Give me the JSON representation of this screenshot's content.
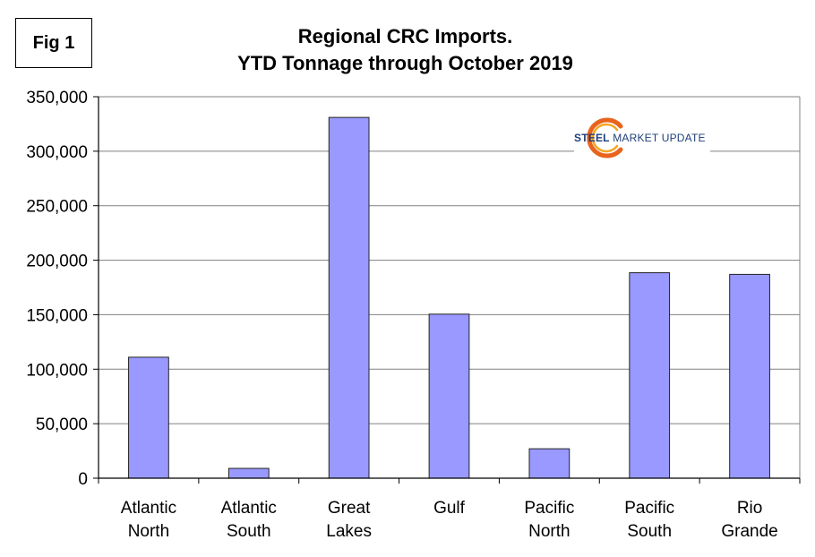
{
  "figure": {
    "label": "Fig 1"
  },
  "logo": {
    "brand_bold": "STEEL",
    "brand_rest": " MARKET UPDATE"
  },
  "colors": {
    "bar_fill": "#9999ff",
    "bar_stroke": "#222222",
    "grid": "#808080",
    "logo_arc": "#e8641e"
  },
  "chart_data": {
    "type": "bar",
    "title": "Regional CRC Imports.",
    "subtitle": "YTD Tonnage through October 2019",
    "categories": [
      [
        "Atlantic",
        "North"
      ],
      [
        "Atlantic",
        "South"
      ],
      [
        "Great",
        "Lakes"
      ],
      [
        "Gulf"
      ],
      [
        "Pacific",
        "North"
      ],
      [
        "Pacific",
        "South"
      ],
      [
        "Rio",
        "Grande"
      ]
    ],
    "values": [
      111000,
      9000,
      331000,
      150500,
      27000,
      188500,
      187000
    ],
    "ylim": [
      0,
      350000
    ],
    "yticks": [
      0,
      50000,
      100000,
      150000,
      200000,
      250000,
      300000,
      350000
    ],
    "ytick_labels": [
      "0",
      "50,000",
      "100,000",
      "150,000",
      "200,000",
      "250,000",
      "300,000",
      "350,000"
    ],
    "xlabel": "",
    "ylabel": "",
    "grid": true,
    "legend": "none"
  }
}
